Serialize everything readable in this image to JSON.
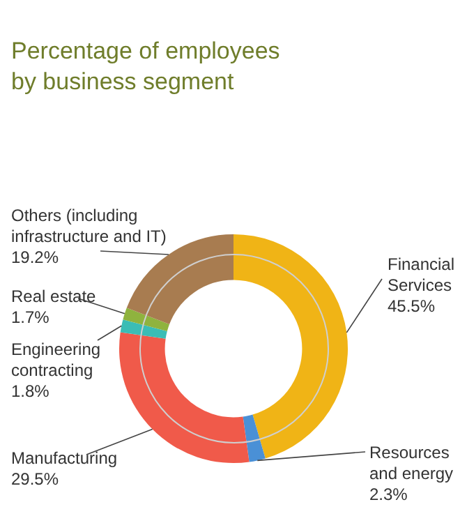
{
  "chart_data": {
    "type": "donut",
    "title": "Percentage of employees by business segment",
    "categories": [
      "Financial Services",
      "Resources and energy",
      "Manufacturing",
      "Engineering contracting",
      "Real estate",
      "Others (including infrastructure and IT)"
    ],
    "values": [
      45.5,
      2.3,
      29.5,
      1.8,
      1.7,
      19.2
    ],
    "colors": [
      "#f0b416",
      "#4a90d6",
      "#f05a4a",
      "#3bbdb5",
      "#8fb33e",
      "#a87c50"
    ],
    "value_labels": [
      "45.5%",
      "2.3%",
      "29.5%",
      "1.8%",
      "1.7%",
      "19.2%"
    ],
    "legend": false
  }
}
